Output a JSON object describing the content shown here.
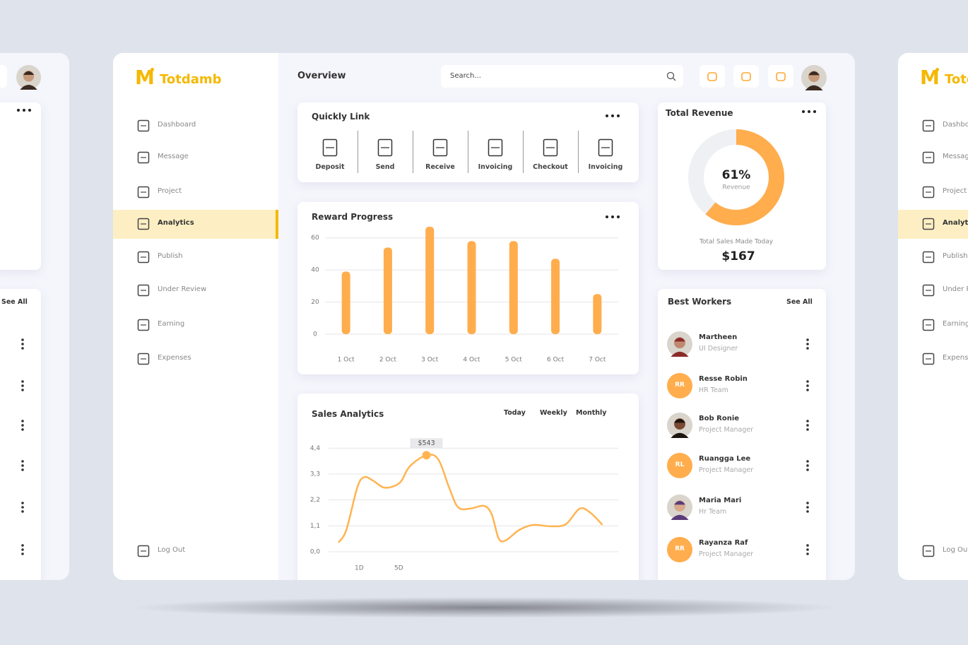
{
  "brand": {
    "logo": "M",
    "name": "Totdamb"
  },
  "sidebar": {
    "menu": [
      {
        "label": "Dashboard"
      },
      {
        "label": "Message"
      },
      {
        "label": "Project"
      },
      {
        "label": "Analytics",
        "active": true
      },
      {
        "label": "Publish"
      },
      {
        "label": "Under Review"
      },
      {
        "label": "Earning"
      },
      {
        "label": "Expenses"
      }
    ],
    "logout": "Log Out"
  },
  "header": {
    "title": "Overview",
    "search_placeholder": "Search..."
  },
  "quick_links": {
    "title": "Quickly Link",
    "items": [
      "Deposit",
      "Send",
      "Receive",
      "Invoicing",
      "Checkout",
      "Invoicing"
    ]
  },
  "chart_data": [
    {
      "type": "bar",
      "title": "Reward Progress",
      "categories": [
        "1 Oct",
        "2 Oct",
        "3 Oct",
        "4 Oct",
        "5 Oct",
        "6 Oct",
        "7 Oct"
      ],
      "values": [
        39,
        54,
        67,
        58,
        58,
        47,
        25
      ],
      "color": "#ffad4d",
      "ylim": [
        0,
        70
      ],
      "yticks": [
        0,
        20,
        40,
        60
      ],
      "grid": true
    },
    {
      "type": "line",
      "title": "Sales Analytics",
      "tabs": [
        "Today",
        "Weekly",
        "Monthly"
      ],
      "x": [
        -1.1,
        -0.3,
        0.8,
        1.5,
        2.4,
        3.6,
        5.1,
        6.1,
        7.8,
        9.0,
        10.1,
        11.0,
        12.2,
        13.6,
        14.4,
        15.1,
        15.8,
        17.2,
        18.6,
        20.4,
        21.9,
        23.3,
        24.4,
        25.6
      ],
      "series": [
        {
          "color": "#ffb451",
          "values": [
            0.39,
            0.93,
            2.72,
            3.17,
            3.02,
            2.72,
            2.93,
            3.62,
            4.1,
            3.92,
            2.72,
            1.89,
            1.83,
            1.95,
            1.59,
            0.57,
            0.48,
            0.93,
            1.14,
            1.08,
            1.17,
            1.83,
            1.65,
            1.14
          ]
        }
      ],
      "annotation": "$543",
      "xlim": [
        -2.1,
        27.2
      ],
      "xticks": [
        {
          "value": 1,
          "label": "1D"
        },
        {
          "value": 5,
          "label": "5D"
        }
      ],
      "ylim": [
        0,
        4.8
      ],
      "yticks": [
        {
          "value": 0,
          "label": "0,0"
        },
        {
          "value": 1.1,
          "label": "1,1"
        },
        {
          "value": 2.2,
          "label": "2,2"
        },
        {
          "value": 3.3,
          "label": "3,3"
        },
        {
          "value": 4.4,
          "label": "4,4"
        }
      ],
      "grid": true
    },
    {
      "type": "pie",
      "title": "Total Revenue",
      "values": [
        61
      ],
      "value_labels": [
        "61%"
      ],
      "subtitle": "Revenue",
      "color": "#ffad4d",
      "footer": "Total Sales Made Today",
      "total": "$167"
    }
  ],
  "best_workers": {
    "title": "Best Workers",
    "see_all": "See All",
    "workers": [
      {
        "name": "Martheen",
        "role": "UI Designer"
      },
      {
        "name": "Resse Robin",
        "role": "HR Team",
        "initials": "RR"
      },
      {
        "name": "Bob Ronie",
        "role": "Project Manager"
      },
      {
        "name": "Ruangga Lee",
        "role": "Project Manager",
        "initials": "RL"
      },
      {
        "name": "Maria Mari",
        "role": "Hr Team"
      },
      {
        "name": "Rayanza Raf",
        "role": "Project Manager",
        "initials": "RR"
      }
    ]
  }
}
